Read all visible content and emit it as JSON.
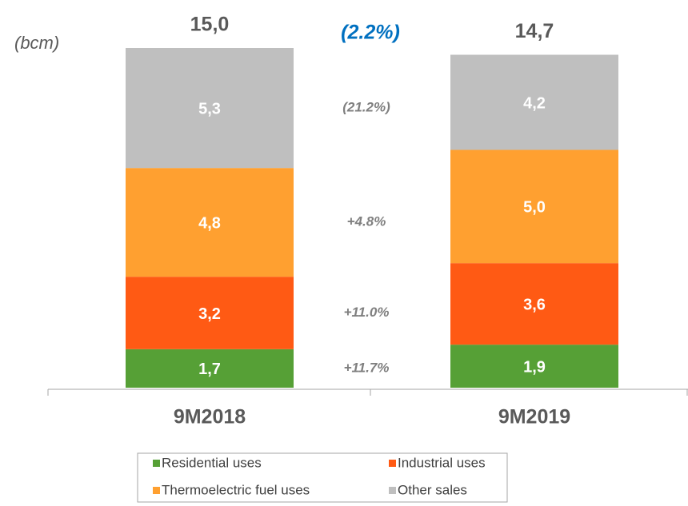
{
  "chart_data": {
    "type": "stacked_bar",
    "unit": "(bcm)",
    "categories": [
      "9M2018",
      "9M2019"
    ],
    "series": [
      {
        "name": "Residential uses",
        "color": "#56a036",
        "values": [
          1.7,
          1.9
        ],
        "value_labels": [
          "1,7",
          "1,9"
        ],
        "change": "+11.7%"
      },
      {
        "name": "Industrial uses",
        "color": "#ff5a14",
        "values": [
          3.2,
          3.6
        ],
        "value_labels": [
          "3,2",
          "3,6"
        ],
        "change": "+11.0%"
      },
      {
        "name": "Thermoelectric fuel uses",
        "color": "#ffa030",
        "values": [
          4.8,
          5.0
        ],
        "value_labels": [
          "4,8",
          "5,0"
        ],
        "change": "+4.8%"
      },
      {
        "name": "Other sales",
        "color": "#bfbfbf",
        "values": [
          5.3,
          4.2
        ],
        "value_labels": [
          "5,3",
          "4,2"
        ],
        "change": "(21.2%)"
      }
    ],
    "totals": {
      "values": [
        15.0,
        14.7
      ],
      "value_labels": [
        "15,0",
        "14,7"
      ],
      "change": "(2.2%)"
    }
  }
}
